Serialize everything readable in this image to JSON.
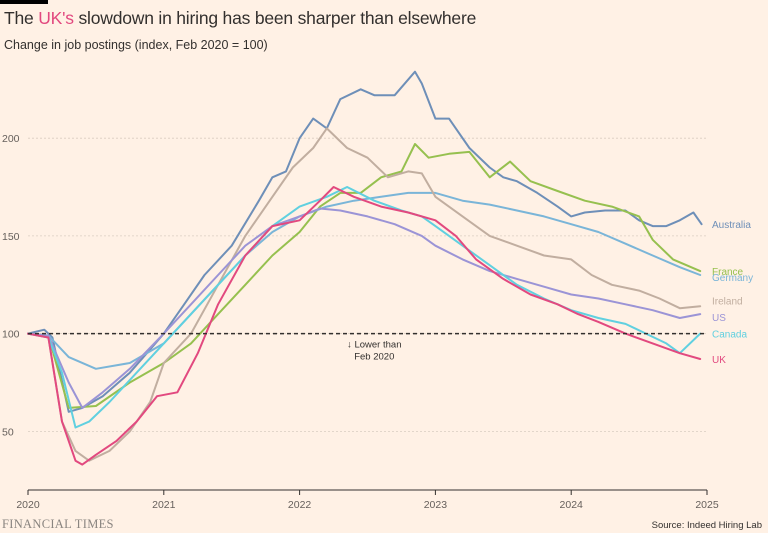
{
  "header": {
    "title_before": "The ",
    "title_highlight": "UK's",
    "title_after": " slowdown in hiring has been sharper than elsewhere",
    "subtitle": "Change in job postings (index, Feb 2020 = 100)"
  },
  "footer": {
    "brand": "FINANCIAL TIMES",
    "source": "Source: Indeed Hiring Lab"
  },
  "chart_data": {
    "type": "line",
    "title": "The UK's slowdown in hiring has been sharper than elsewhere",
    "subtitle": "Change in job postings (index, Feb 2020 = 100)",
    "xlabel": "",
    "ylabel": "",
    "xlim": [
      2020.0,
      2025.0
    ],
    "ylim": [
      20,
      240
    ],
    "yticks": [
      50,
      100,
      150,
      200
    ],
    "xticks": [
      2020,
      2021,
      2022,
      2023,
      2024,
      2025
    ],
    "xtick_labels": [
      "2020",
      "2021",
      "2022",
      "2023",
      "2024",
      "2025"
    ],
    "grid": "horizontal dashed",
    "reference_line": {
      "value": 100,
      "style": "dashed"
    },
    "annotation": {
      "lines": [
        "↓ Lower than",
        "Feb 2020"
      ],
      "x": 2022.55,
      "y": 100
    },
    "series": [
      {
        "name": "Australia",
        "color": "#6e8fb8",
        "x": [
          2020.0,
          2020.12,
          2020.18,
          2020.3,
          2020.4,
          2020.55,
          2020.75,
          2020.9,
          2021.0,
          2021.15,
          2021.3,
          2021.5,
          2021.7,
          2021.8,
          2021.9,
          2022.0,
          2022.1,
          2022.2,
          2022.3,
          2022.45,
          2022.55,
          2022.7,
          2022.85,
          2022.9,
          2023.0,
          2023.1,
          2023.25,
          2023.4,
          2023.5,
          2023.6,
          2023.75,
          2023.9,
          2024.0,
          2024.1,
          2024.25,
          2024.4,
          2024.5,
          2024.6,
          2024.7,
          2024.8,
          2024.9,
          2024.96
        ],
        "values": [
          100,
          102,
          98,
          60,
          62,
          68,
          80,
          92,
          100,
          115,
          130,
          145,
          168,
          180,
          183,
          200,
          210,
          205,
          220,
          225,
          222,
          222,
          234,
          228,
          210,
          210,
          195,
          185,
          180,
          178,
          172,
          165,
          160,
          162,
          163,
          163,
          158,
          155,
          155,
          158,
          162,
          156
        ]
      },
      {
        "name": "France",
        "color": "#96c04f",
        "x": [
          2020.0,
          2020.15,
          2020.3,
          2020.5,
          2020.75,
          2021.0,
          2021.2,
          2021.4,
          2021.6,
          2021.8,
          2022.0,
          2022.15,
          2022.3,
          2022.45,
          2022.6,
          2022.75,
          2022.85,
          2022.95,
          2023.1,
          2023.25,
          2023.4,
          2023.55,
          2023.7,
          2023.9,
          2024.1,
          2024.3,
          2024.5,
          2024.6,
          2024.75,
          2024.95
        ],
        "values": [
          100,
          99,
          62,
          63,
          75,
          85,
          95,
          110,
          125,
          140,
          152,
          165,
          172,
          172,
          180,
          183,
          197,
          190,
          192,
          193,
          180,
          188,
          178,
          173,
          168,
          165,
          160,
          148,
          138,
          132
        ]
      },
      {
        "name": "Germany",
        "color": "#7ab5d8",
        "x": [
          2020.0,
          2020.15,
          2020.3,
          2020.5,
          2020.75,
          2021.0,
          2021.2,
          2021.4,
          2021.6,
          2021.8,
          2022.0,
          2022.2,
          2022.4,
          2022.6,
          2022.8,
          2023.0,
          2023.2,
          2023.4,
          2023.6,
          2023.8,
          2024.0,
          2024.2,
          2024.4,
          2024.6,
          2024.8,
          2024.95
        ],
        "values": [
          100,
          99,
          88,
          82,
          85,
          95,
          110,
          125,
          140,
          152,
          160,
          165,
          168,
          170,
          172,
          172,
          168,
          166,
          163,
          160,
          156,
          152,
          146,
          140,
          134,
          130
        ]
      },
      {
        "name": "Ireland",
        "color": "#c1aea0",
        "x": [
          2020.0,
          2020.15,
          2020.25,
          2020.35,
          2020.45,
          2020.6,
          2020.75,
          2020.9,
          2021.0,
          2021.2,
          2021.4,
          2021.6,
          2021.8,
          2021.95,
          2022.1,
          2022.2,
          2022.35,
          2022.5,
          2022.65,
          2022.8,
          2022.9,
          2023.0,
          2023.2,
          2023.4,
          2023.6,
          2023.8,
          2024.0,
          2024.15,
          2024.3,
          2024.5,
          2024.65,
          2024.8,
          2024.95
        ],
        "values": [
          100,
          98,
          55,
          40,
          35,
          40,
          50,
          65,
          85,
          100,
          125,
          150,
          170,
          185,
          195,
          205,
          195,
          190,
          180,
          183,
          182,
          170,
          160,
          150,
          145,
          140,
          138,
          130,
          125,
          122,
          118,
          113,
          114
        ]
      },
      {
        "name": "US",
        "color": "#9b94d6",
        "x": [
          2020.0,
          2020.15,
          2020.3,
          2020.4,
          2020.55,
          2020.75,
          2021.0,
          2021.2,
          2021.4,
          2021.6,
          2021.8,
          2022.0,
          2022.15,
          2022.3,
          2022.5,
          2022.7,
          2022.9,
          2023.0,
          2023.2,
          2023.4,
          2023.6,
          2023.8,
          2024.0,
          2024.2,
          2024.4,
          2024.6,
          2024.8,
          2024.95
        ],
        "values": [
          100,
          99,
          75,
          62,
          70,
          82,
          100,
          115,
          130,
          145,
          155,
          160,
          164,
          163,
          160,
          156,
          150,
          145,
          138,
          132,
          128,
          124,
          120,
          118,
          115,
          112,
          108,
          110
        ]
      },
      {
        "name": "Canada",
        "color": "#60d0e0",
        "x": [
          2020.0,
          2020.15,
          2020.25,
          2020.35,
          2020.45,
          2020.6,
          2020.8,
          2021.0,
          2021.2,
          2021.4,
          2021.6,
          2021.8,
          2022.0,
          2022.2,
          2022.35,
          2022.55,
          2022.75,
          2022.9,
          2023.0,
          2023.2,
          2023.4,
          2023.6,
          2023.8,
          2024.0,
          2024.2,
          2024.4,
          2024.55,
          2024.7,
          2024.8,
          2024.95
        ],
        "values": [
          100,
          98,
          80,
          52,
          55,
          65,
          80,
          95,
          110,
          125,
          140,
          155,
          165,
          170,
          175,
          168,
          163,
          160,
          155,
          145,
          135,
          125,
          118,
          112,
          108,
          105,
          100,
          95,
          90,
          100
        ]
      },
      {
        "name": "UK",
        "color": "#e2497f",
        "x": [
          2020.0,
          2020.15,
          2020.25,
          2020.35,
          2020.4,
          2020.5,
          2020.65,
          2020.8,
          2020.95,
          2021.1,
          2021.25,
          2021.4,
          2021.6,
          2021.8,
          2022.0,
          2022.15,
          2022.25,
          2022.4,
          2022.6,
          2022.8,
          2023.0,
          2023.15,
          2023.3,
          2023.5,
          2023.7,
          2023.9,
          2024.05,
          2024.2,
          2024.4,
          2024.6,
          2024.8,
          2024.95
        ],
        "values": [
          100,
          98,
          55,
          35,
          33,
          38,
          45,
          55,
          68,
          70,
          90,
          115,
          140,
          155,
          158,
          168,
          175,
          170,
          165,
          162,
          158,
          150,
          138,
          128,
          120,
          115,
          110,
          106,
          100,
          95,
          90,
          87
        ]
      }
    ]
  }
}
